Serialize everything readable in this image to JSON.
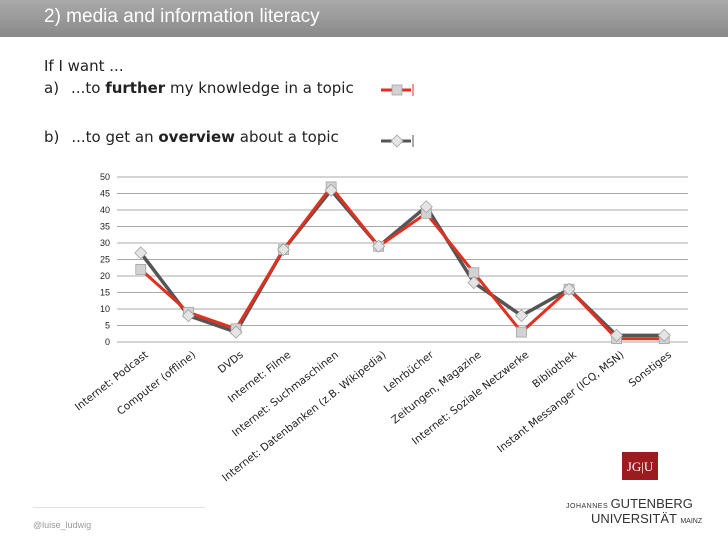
{
  "header": {
    "title": "2) media and information literacy"
  },
  "intro": {
    "line1": "If I want ...",
    "item_a_marker": "a)",
    "item_a_pre": "...to ",
    "item_a_bold": "further",
    "item_a_post": " my knowledge in a topic",
    "item_b_marker": "b)",
    "item_b_pre": "...to get an ",
    "item_b_bold": "overview",
    "item_b_post": " about a topic"
  },
  "colors": {
    "further": "#e03020",
    "overview": "#555555",
    "grid": "#8c8c8c",
    "brand": "#9b1b1f"
  },
  "chart_data": {
    "type": "line",
    "categories": [
      "Internet: Podcast",
      "Computer (offline)",
      "DVDs",
      "Internet: Filme",
      "Internet: Suchmaschinen",
      "Internet: Datenbanken (z.B. Wikipedia)",
      "Lehrbücher",
      "Zeitungen, Magazine",
      "Internet: Soziale Netzwerke",
      "Bibliothek",
      "Instant Messanger (ICQ, MSN)",
      "Sonstiges"
    ],
    "series": [
      {
        "key": "further",
        "values": [
          22,
          9,
          4,
          28,
          47,
          29,
          39,
          21,
          3,
          16,
          1,
          1
        ]
      },
      {
        "key": "overview",
        "values": [
          27,
          8,
          3,
          28,
          46,
          29,
          41,
          18,
          8,
          16,
          2,
          2
        ]
      }
    ],
    "yticks": [
      0,
      5,
      10,
      15,
      20,
      25,
      30,
      35,
      40,
      45,
      50
    ],
    "ylim": [
      0,
      50
    ],
    "grid": true
  },
  "footer": {
    "credit": "@luise_ludwig",
    "logo_mark": "JG|U",
    "logo_small_1": "JOHANNES ",
    "logo_big_1": "GUTENBERG",
    "logo_big_2": "UNIVERSITÄT ",
    "logo_small_2": "MAINZ"
  }
}
